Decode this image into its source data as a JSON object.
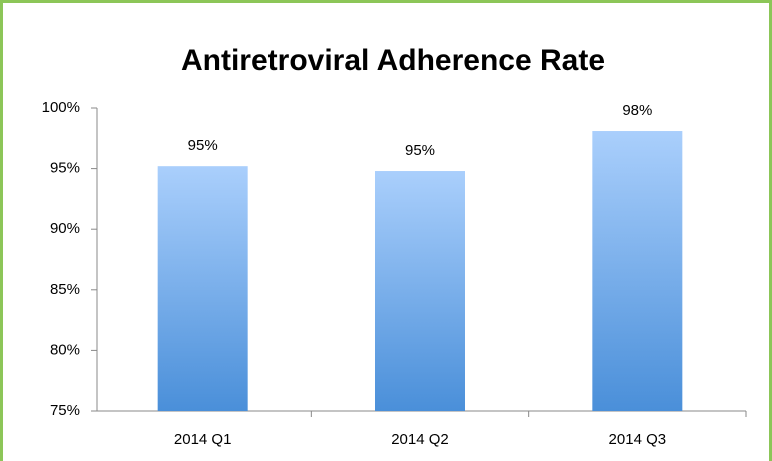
{
  "chart_data": {
    "type": "bar",
    "title": "Antiretroviral Adherence Rate",
    "categories": [
      "2014 Q1",
      "2014 Q2",
      "2014 Q3"
    ],
    "values": [
      95.2,
      94.8,
      98.1
    ],
    "value_labels": [
      "95%",
      "95%",
      "98%"
    ],
    "color": "#6fa8ec",
    "ylim": [
      75,
      100
    ],
    "yticks": [
      {
        "value": 75,
        "label": "75%"
      },
      {
        "value": 80,
        "label": "80%"
      },
      {
        "value": 85,
        "label": "85%"
      },
      {
        "value": 90,
        "label": "90%"
      },
      {
        "value": 95,
        "label": "95%"
      },
      {
        "value": 100,
        "label": "100%"
      }
    ],
    "grid": false
  }
}
